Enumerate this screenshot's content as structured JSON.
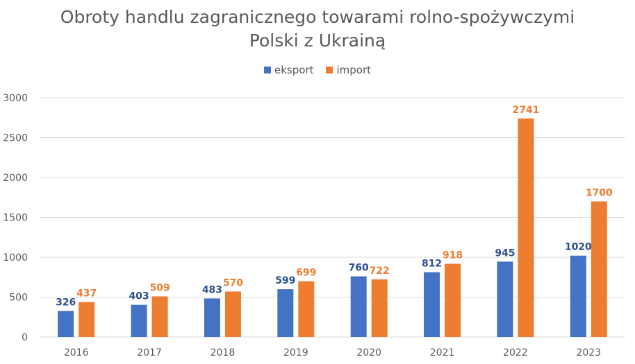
{
  "chart_data": {
    "type": "bar",
    "title_lines": [
      "Obroty handlu zagranicznego towarami rolno-spożywczymi",
      "Polski z Ukrainą"
    ],
    "categories": [
      "2016",
      "2017",
      "2018",
      "2019",
      "2020",
      "2021",
      "2022",
      "2023"
    ],
    "series": [
      {
        "name": "eksport",
        "color": "#4472C4",
        "label_color": "#2F4F8F",
        "values": [
          326,
          403,
          483,
          599,
          760,
          812,
          945,
          1020
        ]
      },
      {
        "name": "import",
        "color": "#ED7D31",
        "label_color": "#ED7D31",
        "values": [
          437,
          509,
          570,
          699,
          722,
          918,
          2741,
          1700
        ]
      }
    ],
    "ylim": [
      0,
      3000
    ],
    "yticks": [
      "0",
      "500",
      "1000",
      "1500",
      "2000",
      "2500",
      "3000"
    ],
    "grid": true,
    "legend": "top-center"
  }
}
